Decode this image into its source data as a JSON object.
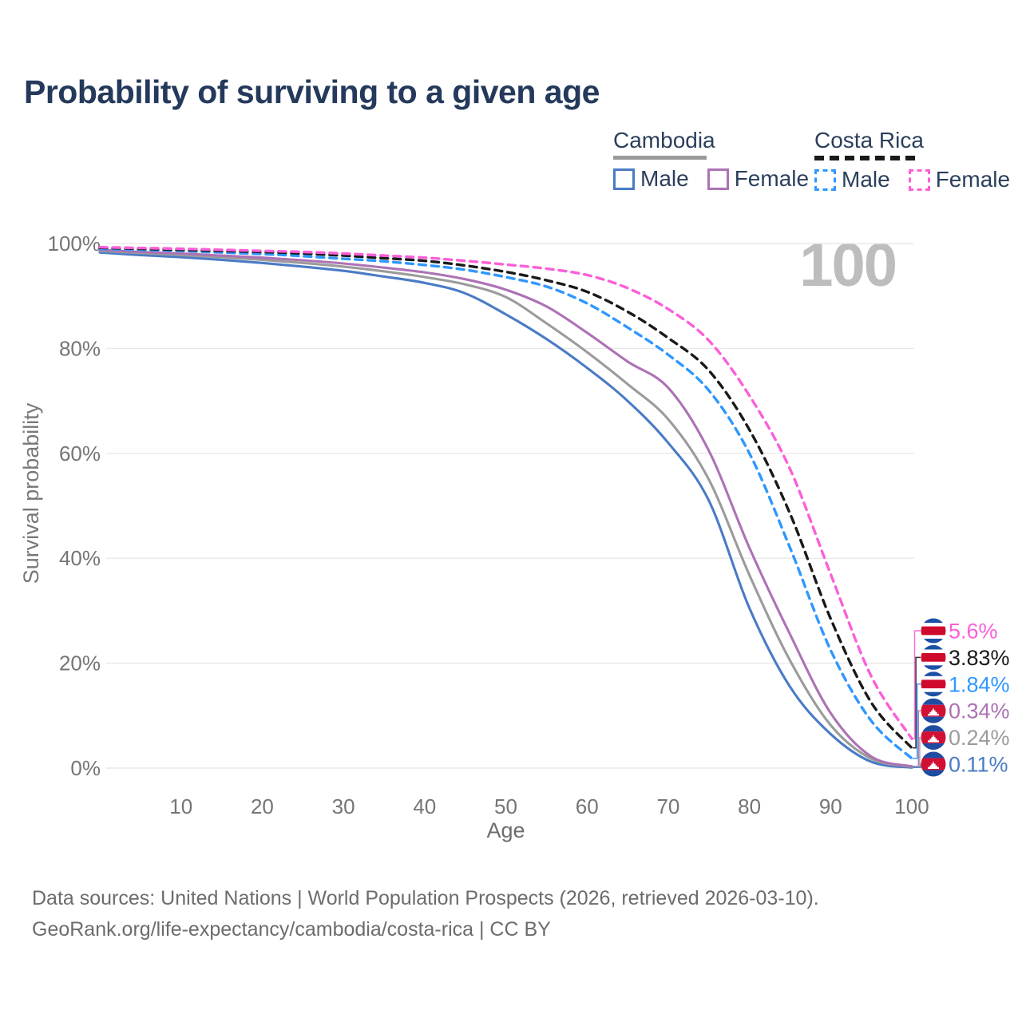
{
  "title": "Probability of surviving to a given age",
  "watermark": "100",
  "legend": {
    "groups": [
      {
        "country": "Cambodia",
        "line_style": "solid",
        "underline_color": "#9a9a9a",
        "items": [
          {
            "label": "Male",
            "color": "#4a7bc5"
          },
          {
            "label": "Female",
            "color": "#ad72b5"
          }
        ]
      },
      {
        "country": "Costa Rica",
        "line_style": "dashed",
        "underline_color": "#1a1a1a",
        "items": [
          {
            "label": "Male",
            "color": "#2f97ff"
          },
          {
            "label": "Female",
            "color": "#fb5fd8"
          }
        ]
      }
    ]
  },
  "axes": {
    "x_title": "Age",
    "y_title": "Survival probability",
    "x_ticks": [
      10,
      20,
      30,
      40,
      50,
      60,
      70,
      80,
      90,
      100
    ],
    "y_ticks": [
      {
        "label": "0%",
        "value": 0
      },
      {
        "label": "20%",
        "value": 20
      },
      {
        "label": "40%",
        "value": 40
      },
      {
        "label": "60%",
        "value": 60
      },
      {
        "label": "80%",
        "value": 80
      },
      {
        "label": "100%",
        "value": 100
      }
    ]
  },
  "footer": {
    "line1": "Data sources: United Nations | World Population Prospects (2026, retrieved 2026-03-10).",
    "line2": "GeoRank.org/life-expectancy/cambodia/costa-rica | CC BY"
  },
  "flag_colors": {
    "cambodia": {
      "blue": "#1e4ca1",
      "red": "#d21034",
      "temple": "#ffffff"
    },
    "costa_rica": {
      "blue": "#1c50a5",
      "white": "#ffffff",
      "red": "#cf0a2c"
    }
  },
  "chart_data": {
    "type": "line",
    "title": "Probability of surviving to a given age",
    "xlabel": "Age",
    "ylabel": "Survival probability",
    "xlim": [
      0,
      100
    ],
    "ylim": [
      0,
      100
    ],
    "grid": "horizontal",
    "legend_position": "top-right",
    "x": [
      0,
      5,
      10,
      15,
      20,
      25,
      30,
      35,
      40,
      45,
      50,
      55,
      60,
      65,
      70,
      75,
      80,
      85,
      90,
      95,
      100
    ],
    "series": [
      {
        "name": "Costa Rica Female",
        "country": "Costa Rica",
        "sex": "Female",
        "flag": "costa_rica",
        "color": "#fb5fd8",
        "dashed": true,
        "end_label": "5.6%",
        "values": [
          99.3,
          99.15,
          99.0,
          98.8,
          98.6,
          98.4,
          98.1,
          97.7,
          97.3,
          96.7,
          96.0,
          95.2,
          94.0,
          91.5,
          87.5,
          81.5,
          71.0,
          57.0,
          37.0,
          17.5,
          5.6
        ]
      },
      {
        "name": "Costa Rica Both sexes",
        "country": "Costa Rica",
        "sex": "Both sexes",
        "flag": "costa_rica",
        "color": "#1a1a1a",
        "dashed": true,
        "end_label": "3.83%",
        "values": [
          99.2,
          99.0,
          98.8,
          98.6,
          98.4,
          98.1,
          97.7,
          97.2,
          96.7,
          95.8,
          94.6,
          93.0,
          90.8,
          87.0,
          82.0,
          75.8,
          64.5,
          48.5,
          28.5,
          12.5,
          3.83
        ]
      },
      {
        "name": "Costa Rica Male",
        "country": "Costa Rica",
        "sex": "Male",
        "flag": "costa_rica",
        "color": "#2f97ff",
        "dashed": true,
        "end_label": "1.84%",
        "values": [
          99.0,
          98.8,
          98.6,
          98.3,
          98.0,
          97.6,
          97.1,
          96.6,
          95.9,
          95.0,
          93.6,
          91.8,
          88.6,
          84.0,
          78.8,
          72.0,
          60.0,
          42.0,
          22.5,
          9.0,
          1.84
        ]
      },
      {
        "name": "Cambodia Female",
        "country": "Cambodia",
        "sex": "Female",
        "flag": "cambodia",
        "color": "#ad72b5",
        "dashed": false,
        "end_label": "0.34%",
        "values": [
          98.8,
          98.4,
          98.1,
          97.7,
          97.3,
          96.8,
          96.2,
          95.4,
          94.5,
          93.2,
          91.2,
          88.0,
          83.0,
          77.5,
          72.5,
          60.5,
          42.0,
          25.5,
          10.5,
          2.2,
          0.34
        ]
      },
      {
        "name": "Cambodia Both sexes",
        "country": "Cambodia",
        "sex": "Both sexes",
        "flag": "cambodia",
        "color": "#9b9b9b",
        "dashed": false,
        "end_label": "0.24%",
        "values": [
          98.6,
          98.2,
          97.8,
          97.4,
          96.9,
          96.3,
          95.6,
          94.7,
          93.6,
          92.2,
          89.8,
          84.8,
          79.3,
          73.2,
          66.5,
          55.0,
          36.8,
          20.5,
          8.2,
          1.8,
          0.24
        ]
      },
      {
        "name": "Cambodia Male",
        "country": "Cambodia",
        "sex": "Male",
        "flag": "cambodia",
        "color": "#4a7bc5",
        "dashed": false,
        "end_label": "0.11%",
        "values": [
          98.3,
          97.8,
          97.4,
          96.9,
          96.3,
          95.6,
          94.8,
          93.7,
          92.5,
          90.5,
          86.5,
          81.8,
          76.3,
          70.0,
          62.0,
          51.0,
          30.5,
          15.5,
          6.5,
          1.2,
          0.11
        ]
      }
    ]
  }
}
